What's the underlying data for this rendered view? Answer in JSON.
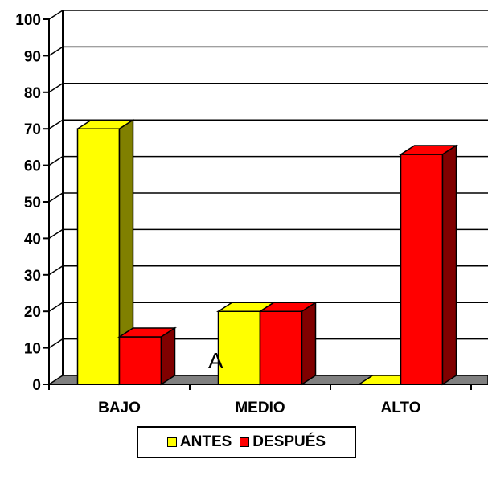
{
  "chart_data": {
    "type": "bar",
    "categories": [
      "BAJO",
      "MEDIO",
      "ALTO"
    ],
    "series": [
      {
        "name": "ANTES",
        "values": [
          70,
          20,
          0
        ],
        "color": "#ffff00",
        "side_color": "#808000"
      },
      {
        "name": "DESPUÉS",
        "values": [
          13,
          20,
          63
        ],
        "color": "#ff0000",
        "side_color": "#800000"
      }
    ],
    "ylim": [
      0,
      100
    ],
    "yticks": [
      0,
      10,
      20,
      30,
      40,
      50,
      60,
      70,
      80,
      90,
      100
    ],
    "grid": true,
    "legend_position": "bottom",
    "annotation": "A",
    "floor_color": "#808080"
  }
}
